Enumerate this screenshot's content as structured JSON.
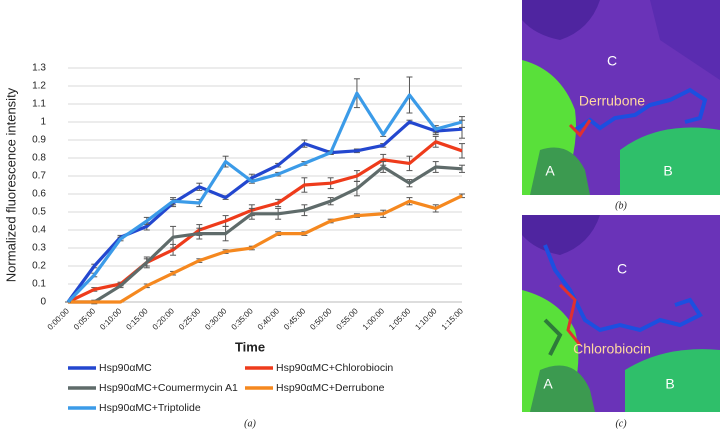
{
  "chart_data": {
    "type": "line",
    "x_label": "Time",
    "y_label": "Normalized fluorescence intensity",
    "caption": "(a)",
    "categories": [
      "0:00:00",
      "0:05:00",
      "0:10:00",
      "0:15:00",
      "0:20:00",
      "0:25:00",
      "0:30:00",
      "0:35:00",
      "0:40:00",
      "0:45:00",
      "0:50:00",
      "0:55:00",
      "1:00:00",
      "1:05:00",
      "1:10:00",
      "1:15:00"
    ],
    "ylim": [
      0,
      1.3
    ],
    "yticks": [
      0,
      0.1,
      0.2,
      0.3,
      0.4,
      0.5,
      0.6,
      0.7,
      0.8,
      0.9,
      1,
      1.1,
      1.2,
      1.3
    ],
    "grid": true,
    "legend_position": "bottom",
    "series": [
      {
        "name": "Hsp90αMC",
        "color": "#2347cf",
        "values": [
          0,
          0.2,
          0.36,
          0.42,
          0.55,
          0.64,
          0.58,
          0.69,
          0.76,
          0.88,
          0.83,
          0.84,
          0.87,
          1.0,
          0.95,
          0.96
        ],
        "errors": [
          0,
          0.01,
          0.01,
          0.02,
          0.02,
          0.02,
          0.01,
          0.02,
          0.01,
          0.02,
          0.01,
          0.01,
          0.01,
          0.01,
          0.02,
          0.05
        ]
      },
      {
        "name": "Hsp90αMC+Chlorobiocin",
        "color": "#ee3b1b",
        "values": [
          0,
          0.07,
          0.1,
          0.22,
          0.29,
          0.4,
          0.45,
          0.51,
          0.55,
          0.65,
          0.66,
          0.7,
          0.79,
          0.77,
          0.89,
          0.84
        ],
        "errors": [
          0,
          0.01,
          0.01,
          0.02,
          0.03,
          0.03,
          0.03,
          0.03,
          0.02,
          0.04,
          0.03,
          0.03,
          0.03,
          0.04,
          0.03,
          0.04
        ]
      },
      {
        "name": "Hsp90αMC+Coumermycin A1",
        "color": "#5f6b6a",
        "values": [
          0,
          0,
          0.09,
          0.22,
          0.36,
          0.38,
          0.38,
          0.49,
          0.49,
          0.51,
          0.56,
          0.63,
          0.75,
          0.66,
          0.75,
          0.74
        ],
        "errors": [
          0,
          0.01,
          0.01,
          0.03,
          0.06,
          0.03,
          0.04,
          0.03,
          0.03,
          0.03,
          0.02,
          0.04,
          0.03,
          0.02,
          0.03,
          0.02
        ]
      },
      {
        "name": "Hsp90αMC+Derrubone",
        "color": "#f5881f",
        "values": [
          0,
          0,
          0,
          0.09,
          0.16,
          0.23,
          0.28,
          0.3,
          0.38,
          0.38,
          0.45,
          0.48,
          0.49,
          0.56,
          0.52,
          0.59
        ],
        "errors": [
          0,
          0,
          0,
          0.01,
          0.01,
          0.01,
          0.01,
          0.01,
          0.01,
          0.01,
          0.01,
          0.01,
          0.02,
          0.02,
          0.02,
          0.01
        ]
      },
      {
        "name": "Hsp90αMC+Triptolide",
        "color": "#3b9be8",
        "values": [
          0,
          0.15,
          0.35,
          0.45,
          0.56,
          0.55,
          0.78,
          0.67,
          0.71,
          0.77,
          0.83,
          1.16,
          0.93,
          1.15,
          0.96,
          1.0
        ],
        "errors": [
          0,
          0.01,
          0.01,
          0.02,
          0.02,
          0.02,
          0.03,
          0.01,
          0.01,
          0.01,
          0.01,
          0.08,
          0.01,
          0.1,
          0.02,
          0.03
        ]
      }
    ]
  },
  "panels": [
    {
      "caption": "(b)",
      "regions": [
        "C",
        "A",
        "B"
      ],
      "ligand": "Derrubone"
    },
    {
      "caption": "(c)",
      "regions": [
        "C",
        "A",
        "B"
      ],
      "ligand": "Chlorobiocin"
    }
  ]
}
